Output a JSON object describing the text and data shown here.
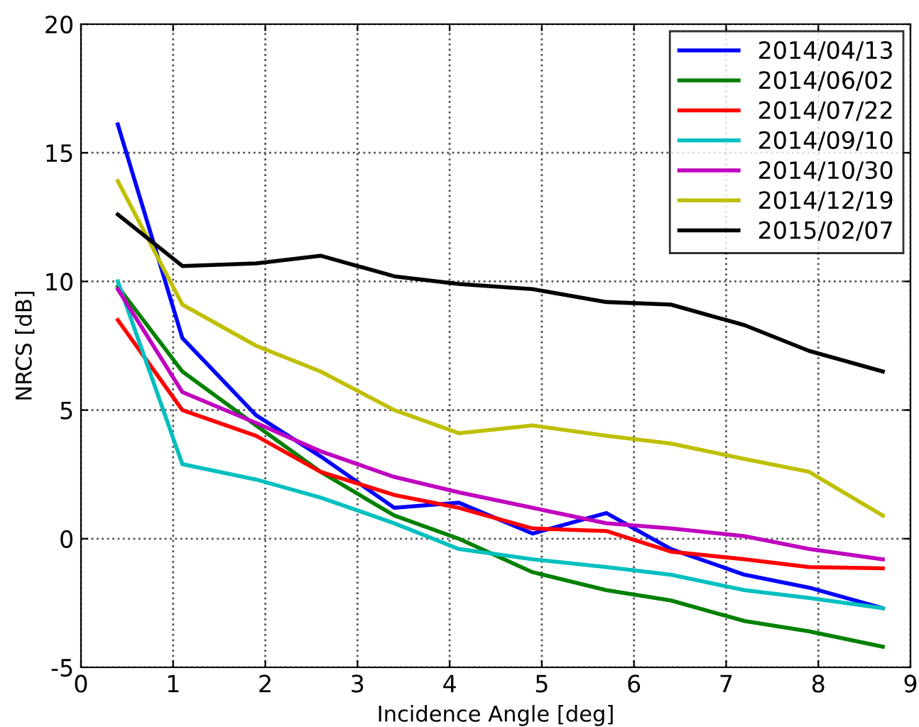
{
  "chart_data": {
    "type": "line",
    "xlabel": "Incidence Angle [deg]",
    "ylabel": "NRCS [dB]",
    "x": [
      0.4,
      1.1,
      1.9,
      2.6,
      3.4,
      4.1,
      4.9,
      5.7,
      6.4,
      7.2,
      7.9,
      8.7
    ],
    "series": [
      {
        "name": "2014/04/13",
        "color": "#0000ff",
        "values": [
          16.1,
          7.8,
          4.8,
          3.2,
          1.2,
          1.4,
          0.2,
          1.0,
          -0.4,
          -1.4,
          -1.9,
          -2.7
        ]
      },
      {
        "name": "2014/06/02",
        "color": "#008000",
        "values": [
          9.8,
          6.5,
          4.4,
          2.6,
          0.9,
          0.0,
          -1.3,
          -2.0,
          -2.4,
          -3.2,
          -3.6,
          -4.2
        ]
      },
      {
        "name": "2014/07/22",
        "color": "#ff0000",
        "values": [
          8.5,
          5.0,
          4.0,
          2.6,
          1.7,
          1.2,
          0.4,
          0.3,
          -0.5,
          -0.8,
          -1.1,
          -1.15
        ]
      },
      {
        "name": "2014/09/10",
        "color": "#00bfbf",
        "values": [
          10.0,
          2.9,
          2.3,
          1.6,
          0.6,
          -0.4,
          -0.8,
          -1.1,
          -1.4,
          -2.0,
          -2.3,
          -2.7
        ]
      },
      {
        "name": "2014/10/30",
        "color": "#bf00bf",
        "values": [
          9.7,
          5.7,
          4.5,
          3.4,
          2.4,
          1.8,
          1.2,
          0.6,
          0.4,
          0.1,
          -0.4,
          -0.8
        ]
      },
      {
        "name": "2014/12/19",
        "color": "#bfbf00",
        "values": [
          13.9,
          9.1,
          7.5,
          6.5,
          5.0,
          4.1,
          4.4,
          4.0,
          3.7,
          3.1,
          2.6,
          0.9
        ]
      },
      {
        "name": "2015/02/07",
        "color": "#000000",
        "values": [
          12.6,
          10.6,
          10.7,
          11.0,
          10.2,
          9.9,
          9.7,
          9.2,
          9.1,
          8.3,
          7.3,
          6.5
        ]
      }
    ],
    "xlim": [
      0,
      9
    ],
    "xticks": [
      0,
      1,
      2,
      3,
      4,
      5,
      6,
      7,
      8,
      9
    ],
    "ylim": [
      -5,
      20
    ],
    "yticks": [
      -5,
      0,
      5,
      10,
      15,
      20
    ],
    "grid": true,
    "legend": "top right",
    "line_style": "solid",
    "marker": "none"
  }
}
